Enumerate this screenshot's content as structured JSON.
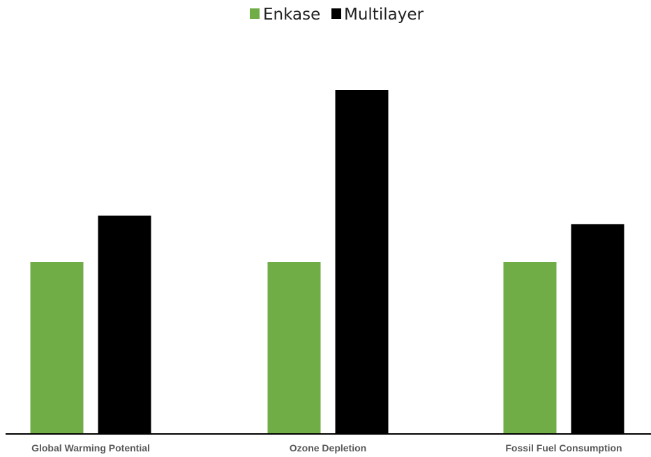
{
  "chart_data": {
    "type": "bar",
    "title": "",
    "xlabel": "",
    "ylabel": "",
    "categories": [
      "Global Warming Potential",
      "Ozone Depletion",
      "Fossil Fuel Consumption"
    ],
    "series": [
      {
        "name": "Enkase",
        "values": [
          1.0,
          1.0,
          1.0
        ],
        "color": "#70ad47"
      },
      {
        "name": "Multilayer",
        "values": [
          1.27,
          2.0,
          1.22
        ],
        "color": "#000000"
      }
    ],
    "ylim": [
      0,
      2.2
    ],
    "grid": false,
    "legend": "top-center",
    "axis_color": "#000000"
  }
}
